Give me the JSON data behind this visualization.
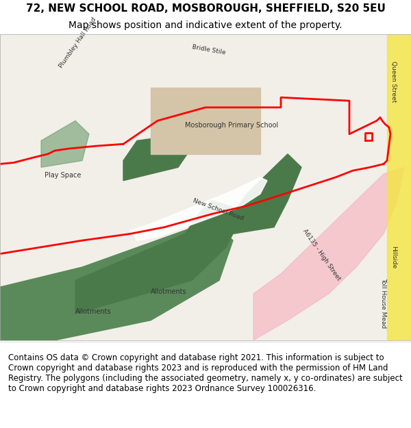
{
  "title_line1": "72, NEW SCHOOL ROAD, MOSBOROUGH, SHEFFIELD, S20 5EU",
  "title_line2": "Map shows position and indicative extent of the property.",
  "footer_text": "Contains OS data © Crown copyright and database right 2021. This information is subject to Crown copyright and database rights 2023 and is reproduced with the permission of HM Land Registry. The polygons (including the associated geometry, namely x, y co-ordinates) are subject to Crown copyright and database rights 2023 Ordnance Survey 100026316.",
  "title_fontsize": 11,
  "subtitle_fontsize": 10,
  "footer_fontsize": 8.5,
  "title_color": "#000000",
  "footer_color": "#000000",
  "bg_color": "#ffffff",
  "map_bg": "#f2efe9",
  "figure_width": 6.0,
  "figure_height": 6.25,
  "dpi": 100
}
